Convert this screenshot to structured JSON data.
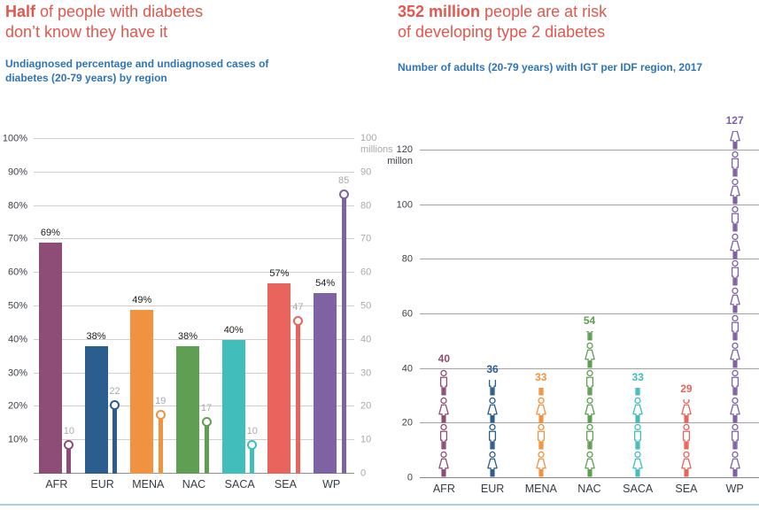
{
  "theme": {
    "title_color": "#e2574e",
    "subtitle_color": "#2f74b5",
    "rule_color": "#aecfe8"
  },
  "left_panel": {
    "title_lead": "Half",
    "title_rest": " of people with diabetes\ndon’t know they have it",
    "subtitle": "Undiagnosed percentage and undiagnosed cases of\ndiabetes (20-79 years) by region"
  },
  "right_panel": {
    "title_lead": "352 million",
    "title_rest": " people are at risk\nof developing type 2 diabetes",
    "subtitle": "Number of adults (20-79 years) with IGT per IDF region, 2017"
  },
  "chart_data": [
    {
      "type": "bar",
      "title": "Half of people with diabetes don’t know they have it",
      "subtitle": "Undiagnosed percentage and undiagnosed cases of diabetes (20-79 years) by region",
      "categories": [
        "AFR",
        "EUR",
        "MENA",
        "NAC",
        "SACA",
        "SEA",
        "WP"
      ],
      "series": [
        {
          "name": "Undiagnosed percentage",
          "unit": "%",
          "values": [
            69,
            38,
            49,
            38,
            40,
            57,
            54
          ],
          "labels": [
            "69%",
            "38%",
            "49%",
            "38%",
            "40%",
            "57%",
            "54%"
          ]
        },
        {
          "name": "Undiagnosed cases",
          "unit": "millions",
          "values": [
            10,
            22,
            19,
            17,
            10,
            47,
            85
          ],
          "labels": [
            "10",
            "22",
            "19",
            "17",
            "10",
            "47",
            "85"
          ]
        }
      ],
      "colors": [
        "#8e4d76",
        "#2b5d8e",
        "#f0923f",
        "#5f9f53",
        "#41bebc",
        "#e9645c",
        "#7e62a4"
      ],
      "left_axis": {
        "min": 0,
        "max": 100,
        "step": 10,
        "suffix": "%"
      },
      "right_axis": {
        "min": 0,
        "max": 100,
        "step": 10,
        "top_label": [
          "100",
          "millions"
        ]
      },
      "grid": true,
      "legend": "none"
    },
    {
      "type": "pictogram",
      "title": "352 million people are at risk of developing type 2 diabetes",
      "subtitle": "Number of adults (20-79 years) with IGT per IDF region, 2017",
      "categories": [
        "AFR",
        "EUR",
        "MENA",
        "NAC",
        "SACA",
        "SEA",
        "WP"
      ],
      "values": [
        40,
        36,
        33,
        54,
        33,
        29,
        127
      ],
      "value_unit": "million",
      "per_icon": 10,
      "colors": [
        "#8e4d76",
        "#2b5d8e",
        "#f0923f",
        "#5f9f53",
        "#41bebc",
        "#e9645c",
        "#7e62a4"
      ],
      "y_axis": {
        "min": 0,
        "max": 120,
        "step": 20,
        "unit_label": "millon"
      },
      "grid": true,
      "legend": "none"
    }
  ]
}
